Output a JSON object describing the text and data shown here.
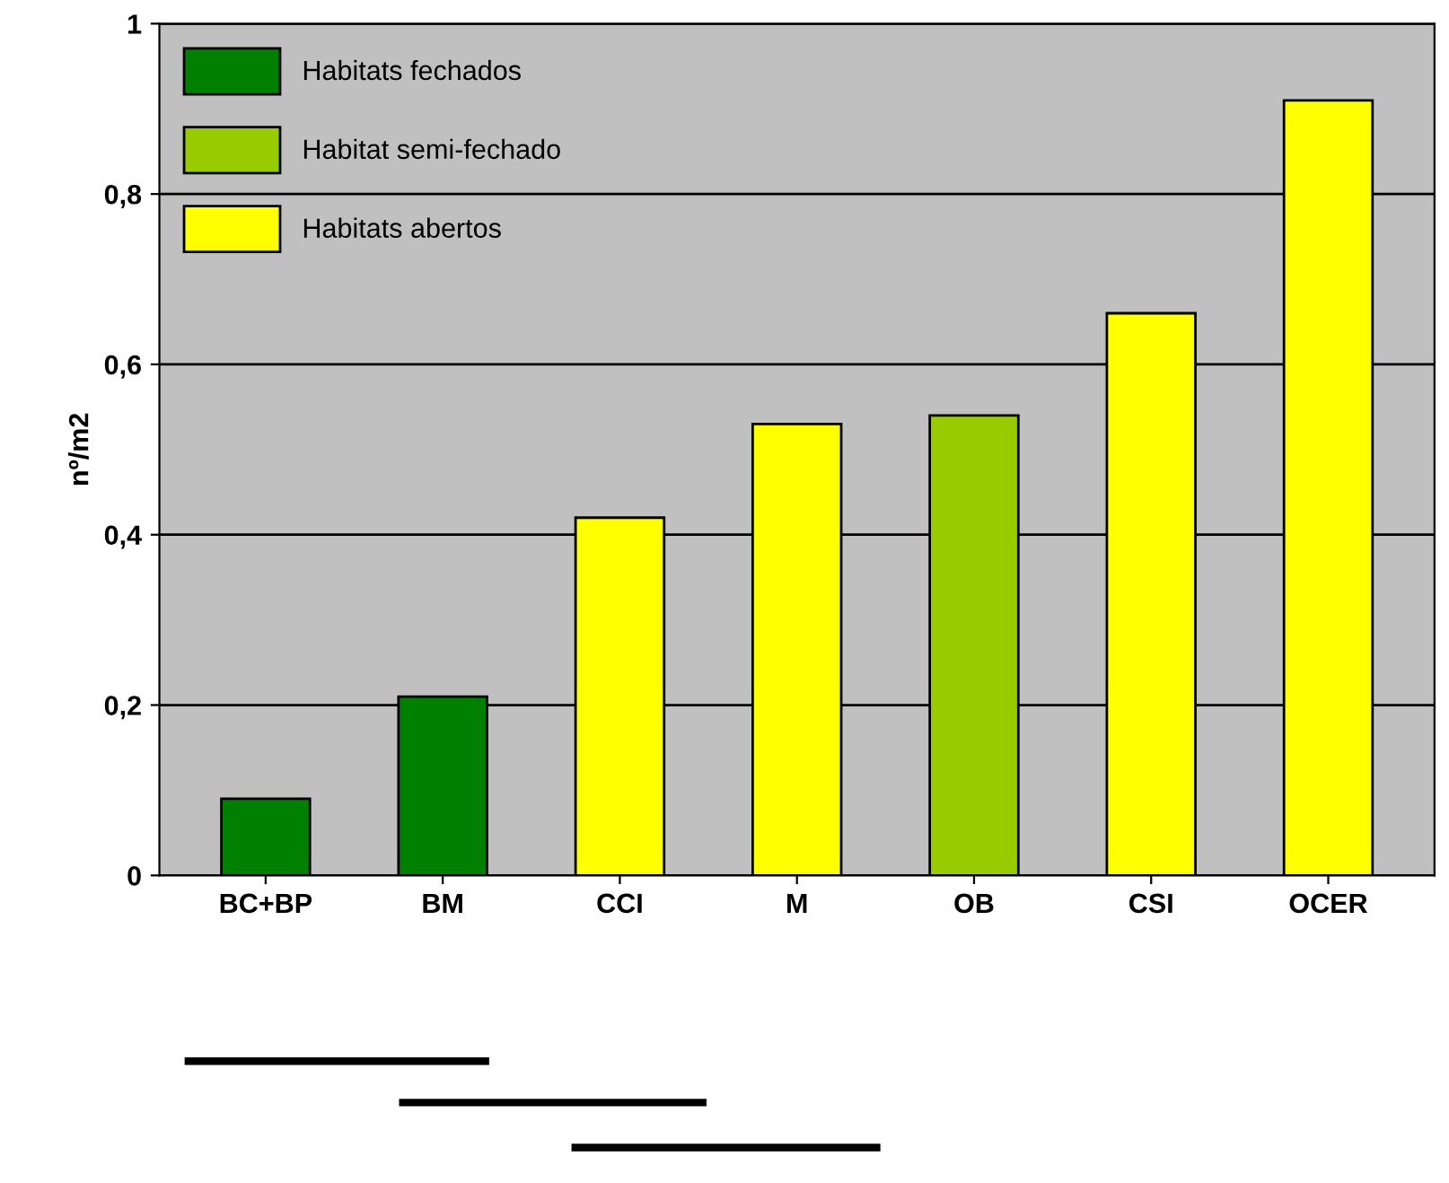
{
  "chart_data": {
    "type": "bar",
    "ylabel": "nº/m2",
    "categories": [
      "BC+BP",
      "BM",
      "CCI",
      "M",
      "OB",
      "CSI",
      "OCER"
    ],
    "series": [
      {
        "name": "Habitats fechados",
        "color": "#008000",
        "values": [
          0.09,
          0.21,
          null,
          null,
          null,
          null,
          null
        ]
      },
      {
        "name": "Habitat semi-fechado",
        "color": "#99cc00",
        "values": [
          null,
          null,
          null,
          null,
          0.54,
          null,
          null
        ]
      },
      {
        "name": "Habitats abertos",
        "color": "#ffff00",
        "values": [
          null,
          null,
          0.42,
          0.53,
          null,
          0.66,
          0.91
        ]
      }
    ],
    "ylim": [
      0,
      1
    ],
    "yticks": [
      0,
      {
        "value": 0.2,
        "label": "0,2"
      },
      {
        "value": 0.4,
        "label": "0,4"
      },
      {
        "value": 0.6,
        "label": "0,6"
      },
      {
        "value": 0.8,
        "label": "0,8"
      },
      1
    ],
    "grid": "y",
    "legend": "top left"
  }
}
